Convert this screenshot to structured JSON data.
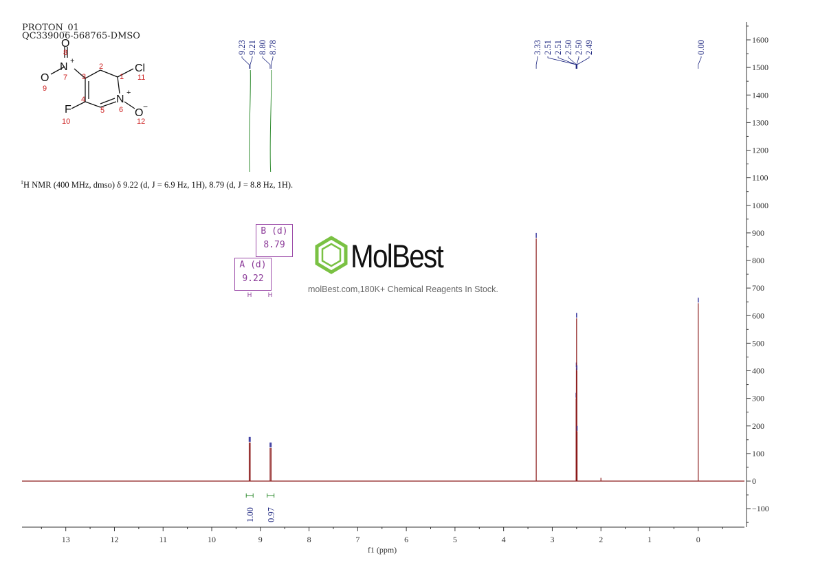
{
  "header": {
    "line1": "PROTON_01",
    "line2": "QC339006-568765-DMSO"
  },
  "nmr_summary": {
    "sup": "1",
    "text": "H NMR (400 MHz, dmso) δ 9.22 (d, J = 6.9 Hz, 1H), 8.79 (d, J = 8.8 Hz, 1H)."
  },
  "brand": {
    "name": "MolBest",
    "tagline": "molBest.com,180K+ Chemical Reagents In Stock.",
    "color": "#7ac143"
  },
  "annotations": {
    "box_a": {
      "line1": "A (d)",
      "line2": "9.22",
      "label": "H"
    },
    "box_b": {
      "line1": "B (d)",
      "line2": "8.79",
      "label": "H"
    }
  },
  "molecule": {
    "atoms": [
      {
        "symbol": "N",
        "charge": "+",
        "number": "7"
      },
      {
        "symbol": "O",
        "number": "8"
      },
      {
        "symbol": "O",
        "charge": "−",
        "number": "9"
      },
      {
        "symbol": "F",
        "number": "10"
      },
      {
        "symbol": "Cl",
        "number": "11"
      },
      {
        "symbol": "N",
        "charge": "+",
        "number": "6"
      },
      {
        "symbol": "O",
        "charge": "−",
        "number": "12"
      }
    ],
    "ring_numbers": [
      "1",
      "2",
      "3",
      "4",
      "5"
    ]
  },
  "chart_data": {
    "type": "line",
    "xlabel": "f1 (ppm)",
    "xlim": [
      13.9,
      -0.95
    ],
    "ylim": [
      -165,
      1665
    ],
    "x_ticks": [
      13,
      12,
      11,
      10,
      9,
      8,
      7,
      6,
      5,
      4,
      3,
      2,
      1,
      0
    ],
    "y_ticks": [
      1600,
      1500,
      1400,
      1300,
      1200,
      1100,
      1000,
      900,
      800,
      700,
      600,
      500,
      400,
      300,
      200,
      100,
      0,
      -100
    ],
    "colors": {
      "spectrum": "#8b1a1a",
      "peak_labels": "#1a237e",
      "integral": "#2e8b2e",
      "annotation": "#9b4aa8"
    },
    "peaks": [
      {
        "ppm": 9.23,
        "height": 140
      },
      {
        "ppm": 9.21,
        "height": 140
      },
      {
        "ppm": 8.8,
        "height": 120
      },
      {
        "ppm": 8.78,
        "height": 120
      },
      {
        "ppm": 3.33,
        "height": 880
      },
      {
        "ppm": 2.51,
        "height": 300
      },
      {
        "ppm": 2.505,
        "height": 410
      },
      {
        "ppm": 2.5,
        "height": 590
      },
      {
        "ppm": 2.495,
        "height": 400
      },
      {
        "ppm": 2.49,
        "height": 180
      },
      {
        "ppm": 2.0,
        "height": 12
      },
      {
        "ppm": 0.0,
        "height": 645
      }
    ],
    "peak_labels": {
      "group1": [
        "9.23",
        "9.21",
        "8.80",
        "8.78"
      ],
      "group2": [
        "3.33",
        "2.51",
        "2.51",
        "2.50",
        "2.50",
        "2.49"
      ],
      "group3": [
        "0.00"
      ]
    },
    "integrals": [
      {
        "ppm": 9.22,
        "value": "1.00"
      },
      {
        "ppm": 8.79,
        "value": "0.97"
      }
    ]
  }
}
